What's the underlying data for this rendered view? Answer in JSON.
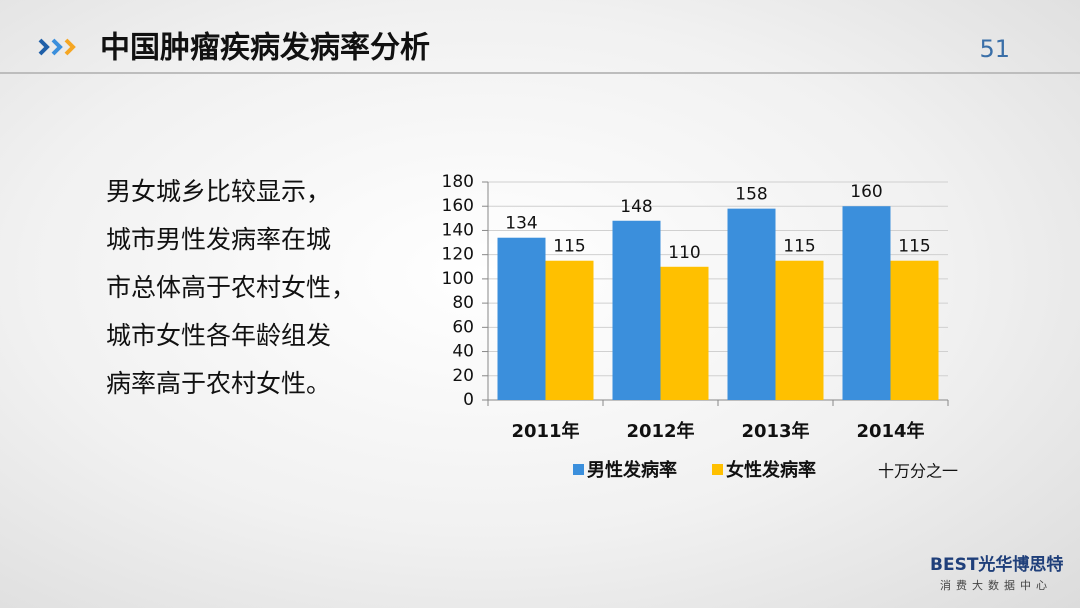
{
  "header": {
    "title": "中国肿瘤疾病发病率分析",
    "page_number": "51"
  },
  "body": {
    "lines": [
      "男女城乡比较显示，",
      "城市男性发病率在城",
      "市总体高于农村女性，",
      "城市女性各年龄组发",
      "病率高于农村女性。"
    ]
  },
  "chart_data": {
    "type": "bar",
    "categories": [
      "2011年",
      "2012年",
      "2013年",
      "2014年"
    ],
    "series": [
      {
        "name": "男性发病率",
        "color": "#3b8fdc",
        "values": [
          134,
          148,
          158,
          160
        ]
      },
      {
        "name": "女性发病率",
        "color": "#ffc000",
        "values": [
          115,
          110,
          115,
          115
        ]
      }
    ],
    "ylim": [
      0,
      180
    ],
    "yticks": [
      0,
      20,
      40,
      60,
      80,
      100,
      120,
      140,
      160,
      180
    ],
    "grid": true,
    "legend": "bottom",
    "unit_note": "十万分之一"
  },
  "footer": {
    "logo": "BEST光华博思特",
    "logo_subtitle": "消费大数据中心"
  }
}
